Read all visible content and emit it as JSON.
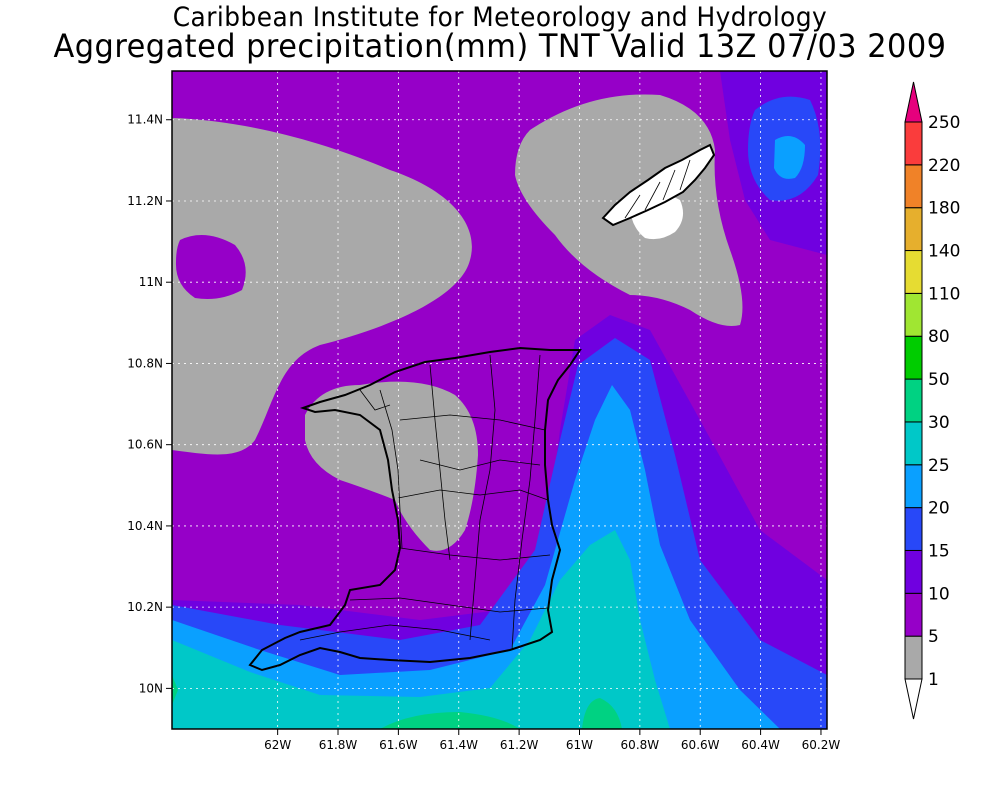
{
  "title": {
    "line1": "Caribbean Institute for Meteorology and Hydrology",
    "line2": "Aggregated precipitation(mm) TNT Valid 13Z 07/03 2009"
  },
  "map": {
    "lon_range": [
      -62.35,
      -60.18
    ],
    "lat_range": [
      9.9,
      11.52
    ],
    "lon_ticks": [
      {
        "value": -62.0,
        "label": "62W"
      },
      {
        "value": -61.8,
        "label": "61.8W"
      },
      {
        "value": -61.6,
        "label": "61.6W"
      },
      {
        "value": -61.4,
        "label": "61.4W"
      },
      {
        "value": -61.2,
        "label": "61.2W"
      },
      {
        "value": -61.0,
        "label": "61W"
      },
      {
        "value": -60.8,
        "label": "60.8W"
      },
      {
        "value": -60.6,
        "label": "60.6W"
      },
      {
        "value": -60.4,
        "label": "60.4W"
      },
      {
        "value": -60.2,
        "label": "60.2W"
      }
    ],
    "lat_ticks": [
      {
        "value": 10.0,
        "label": "10N"
      },
      {
        "value": 10.2,
        "label": "10.2N"
      },
      {
        "value": 10.4,
        "label": "10.4N"
      },
      {
        "value": 10.6,
        "label": "10.6N"
      },
      {
        "value": 10.8,
        "label": "10.8N"
      },
      {
        "value": 11.0,
        "label": "11N"
      },
      {
        "value": 11.2,
        "label": "11.2N"
      },
      {
        "value": 11.4,
        "label": "11.4N"
      }
    ],
    "grid": true,
    "islands": [
      "Trinidad",
      "Tobago"
    ]
  },
  "colorbar": {
    "levels": [
      "1",
      "5",
      "10",
      "15",
      "20",
      "25",
      "30",
      "50",
      "80",
      "110",
      "140",
      "180",
      "220",
      "250"
    ],
    "colors": [
      "#ffffff",
      "#a9a9a9",
      "#9600c8",
      "#7000e0",
      "#2848f8",
      "#0aa0ff",
      "#00c8c8",
      "#00d282",
      "#00cc00",
      "#a0e632",
      "#e6dc32",
      "#e6af2d",
      "#f08228",
      "#fa3c3c",
      "#e6007d"
    ],
    "palette_labels": [
      "white",
      "gray",
      "purple",
      "violet",
      "blue",
      "light-blue",
      "cyan",
      "sea-green",
      "green",
      "yellow-green",
      "yellow",
      "gold",
      "orange",
      "red",
      "magenta"
    ]
  }
}
